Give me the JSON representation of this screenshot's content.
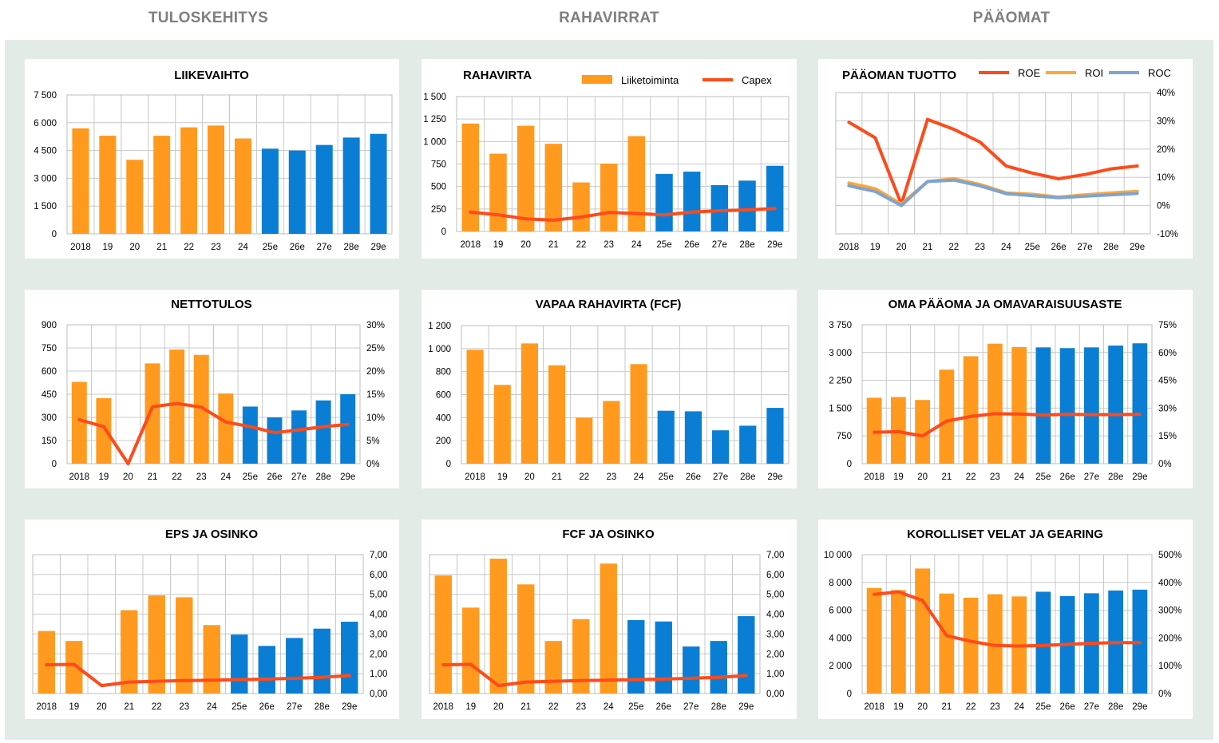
{
  "columns": [
    "TULOSKEHITYS",
    "RAHAVIRRAT",
    "PÄÄOMAT"
  ],
  "colors": {
    "orange": "#ff9a1e",
    "blue": "#0a7ed4",
    "line_red": "#ff4a1a",
    "roi": "#ffa63a",
    "roc": "#7ea4cf",
    "grid": "#c8c8c8",
    "background": "#e3ebe6"
  },
  "chart_data": [
    {
      "id": "liikevaihto",
      "type": "bar",
      "title": "LIIKEVAIHTO",
      "categories": [
        "2018",
        "19",
        "20",
        "21",
        "22",
        "23",
        "24",
        "25e",
        "26e",
        "27e",
        "28e",
        "29e"
      ],
      "series": [
        {
          "kind": "bar",
          "axis": "left",
          "values": [
            5700,
            5300,
            4000,
            5300,
            5750,
            5850,
            5150,
            4600,
            4500,
            4800,
            5200,
            5400
          ]
        }
      ],
      "y_left": {
        "min": 0,
        "max": 7500,
        "ticks": [
          "0",
          "1 500",
          "3 000",
          "4 500",
          "6 000",
          "7 500"
        ]
      },
      "estimate_from_index": 7,
      "grid": true
    },
    {
      "id": "rahavirta",
      "type": "bar",
      "title": "RAHAVIRTA",
      "categories": [
        "2018",
        "19",
        "20",
        "21",
        "22",
        "23",
        "24",
        "25e",
        "26e",
        "27e",
        "28e",
        "29e"
      ],
      "series": [
        {
          "kind": "bar",
          "axis": "left",
          "name": "Liiketoiminta",
          "values": [
            1200,
            865,
            1175,
            975,
            545,
            755,
            1060,
            640,
            665,
            515,
            565,
            730
          ]
        },
        {
          "kind": "line",
          "axis": "left",
          "name": "Capex",
          "values": [
            215,
            185,
            140,
            125,
            160,
            210,
            200,
            185,
            215,
            230,
            240,
            255
          ]
        }
      ],
      "y_left": {
        "min": 0,
        "max": 1500,
        "ticks": [
          "0",
          "250",
          "500",
          "750",
          "1 000",
          "1 250",
          "1 500"
        ]
      },
      "estimate_from_index": 7,
      "grid": true,
      "legend": "top-right"
    },
    {
      "id": "paaoman-tuotto",
      "type": "line",
      "title": "PÄÄOMAN TUOTTO",
      "categories": [
        "2018",
        "19",
        "20",
        "21",
        "22",
        "23",
        "24",
        "25e",
        "26e",
        "27e",
        "28e",
        "29e"
      ],
      "series": [
        {
          "kind": "line",
          "axis": "right",
          "name": "ROE",
          "values": [
            29.5,
            24,
            0.5,
            30.5,
            27,
            22.5,
            14,
            11.5,
            9.5,
            11,
            13,
            14
          ]
        },
        {
          "kind": "line",
          "axis": "right",
          "name": "ROI",
          "values": [
            8,
            6,
            0.5,
            8.5,
            9.5,
            7.5,
            4.5,
            4,
            3,
            3.8,
            4.5,
            5
          ]
        },
        {
          "kind": "line",
          "axis": "right",
          "name": "ROC",
          "values": [
            7,
            5,
            0,
            8.5,
            9,
            7,
            4.2,
            3.5,
            2.8,
            3.3,
            3.8,
            4.3
          ]
        }
      ],
      "y_right": {
        "min": -10,
        "max": 40,
        "ticks": [
          "-10%",
          "0%",
          "10%",
          "20%",
          "30%",
          "40%"
        ]
      },
      "grid": true,
      "legend": "top-right"
    },
    {
      "id": "nettotulos",
      "type": "bar",
      "title": "NETTOTULOS",
      "categories": [
        "2018",
        "19",
        "20",
        "21",
        "22",
        "23",
        "24",
        "25e",
        "26e",
        "27e",
        "28e",
        "29e"
      ],
      "series": [
        {
          "kind": "bar",
          "axis": "left",
          "values": [
            530,
            425,
            0,
            650,
            740,
            705,
            455,
            370,
            300,
            345,
            410,
            450
          ]
        },
        {
          "kind": "line",
          "axis": "right",
          "values": [
            9.5,
            8,
            0,
            12.3,
            13,
            12.2,
            9,
            8,
            6.7,
            7.3,
            8,
            8.5
          ]
        }
      ],
      "y_left": {
        "min": 0,
        "max": 900,
        "ticks": [
          "0",
          "150",
          "300",
          "450",
          "600",
          "750",
          "900"
        ]
      },
      "y_right": {
        "min": 0,
        "max": 30,
        "ticks": [
          "0%",
          "5%",
          "10%",
          "15%",
          "20%",
          "25%",
          "30%"
        ]
      },
      "estimate_from_index": 7,
      "grid": true
    },
    {
      "id": "vapaa-rahavirta",
      "type": "bar",
      "title": "VAPAA RAHAVIRTA (FCF)",
      "categories": [
        "2018",
        "19",
        "20",
        "21",
        "22",
        "23",
        "24",
        "25e",
        "26e",
        "27e",
        "28e",
        "29e"
      ],
      "series": [
        {
          "kind": "bar",
          "axis": "left",
          "values": [
            990,
            685,
            1045,
            855,
            400,
            545,
            865,
            460,
            455,
            290,
            330,
            485
          ]
        }
      ],
      "y_left": {
        "min": 0,
        "max": 1200,
        "ticks": [
          "0",
          "200",
          "400",
          "600",
          "800",
          "1 000",
          "1 200"
        ]
      },
      "estimate_from_index": 7,
      "grid": true
    },
    {
      "id": "oma-paaoma",
      "type": "bar",
      "title": "OMA PÄÄOMA JA OMAVARAISUUSASTE",
      "categories": [
        "2018",
        "19",
        "20",
        "21",
        "22",
        "23",
        "24",
        "25e",
        "26e",
        "27e",
        "28e",
        "29e"
      ],
      "series": [
        {
          "kind": "bar",
          "axis": "left",
          "values": [
            1780,
            1800,
            1720,
            2540,
            2900,
            3240,
            3150,
            3140,
            3120,
            3140,
            3190,
            3250
          ]
        },
        {
          "kind": "line",
          "axis": "right",
          "values": [
            17,
            17.3,
            15,
            23,
            25.5,
            27,
            26.8,
            26.3,
            26.7,
            26.5,
            26.5,
            26.7
          ]
        }
      ],
      "y_left": {
        "min": 0,
        "max": 3750,
        "ticks": [
          "0",
          "750",
          "1 500",
          "2 250",
          "3 000",
          "3 750"
        ]
      },
      "y_right": {
        "min": 0,
        "max": 75,
        "ticks": [
          "0%",
          "15%",
          "30%",
          "45%",
          "60%",
          "75%"
        ]
      },
      "estimate_from_index": 7,
      "grid": true
    },
    {
      "id": "eps-osinko",
      "type": "bar",
      "title": "EPS JA OSINKO",
      "categories": [
        "2018",
        "19",
        "20",
        "21",
        "22",
        "23",
        "24",
        "25e",
        "26e",
        "27e",
        "28e",
        "29e"
      ],
      "series": [
        {
          "kind": "bar",
          "axis": "right",
          "values": [
            3.15,
            2.65,
            0,
            4.2,
            4.95,
            4.85,
            3.45,
            2.97,
            2.4,
            2.8,
            3.27,
            3.62
          ]
        },
        {
          "kind": "line",
          "axis": "right",
          "values": [
            1.45,
            1.47,
            0.4,
            0.58,
            0.62,
            0.65,
            0.67,
            0.7,
            0.73,
            0.77,
            0.82,
            0.9
          ]
        }
      ],
      "y_right": {
        "min": 0,
        "max": 7,
        "ticks": [
          "0,00",
          "1,00",
          "2,00",
          "3,00",
          "4,00",
          "5,00",
          "6,00",
          "7,00"
        ]
      },
      "estimate_from_index": 7,
      "grid": true
    },
    {
      "id": "fcf-osinko",
      "type": "bar",
      "title": "FCF JA OSINKO",
      "categories": [
        "2018",
        "19",
        "20",
        "21",
        "22",
        "23",
        "24",
        "25e",
        "26e",
        "27e",
        "28e",
        "29e"
      ],
      "series": [
        {
          "kind": "bar",
          "axis": "right",
          "values": [
            5.95,
            4.33,
            6.8,
            5.5,
            2.65,
            3.75,
            6.55,
            3.7,
            3.63,
            2.37,
            2.65,
            3.9
          ]
        },
        {
          "kind": "line",
          "axis": "right",
          "values": [
            1.45,
            1.47,
            0.4,
            0.58,
            0.62,
            0.65,
            0.67,
            0.7,
            0.73,
            0.77,
            0.82,
            0.9
          ]
        }
      ],
      "y_right": {
        "min": 0,
        "max": 7,
        "ticks": [
          "0,00",
          "1,00",
          "2,00",
          "3,00",
          "4,00",
          "5,00",
          "6,00",
          "7,00"
        ]
      },
      "estimate_from_index": 7,
      "grid": true
    },
    {
      "id": "korolliset-velat",
      "type": "bar",
      "title": "KOROLLISET VELAT JA GEARING",
      "categories": [
        "2018",
        "19",
        "20",
        "21",
        "22",
        "23",
        "24",
        "25e",
        "26e",
        "27e",
        "28e",
        "29e"
      ],
      "series": [
        {
          "kind": "bar",
          "axis": "left",
          "values": [
            7600,
            7450,
            9000,
            7200,
            6900,
            7150,
            6990,
            7330,
            7020,
            7220,
            7420,
            7480
          ]
        },
        {
          "kind": "line",
          "axis": "right",
          "values": [
            357,
            366,
            335,
            208,
            188,
            173,
            171,
            173,
            177,
            181,
            183,
            183
          ]
        }
      ],
      "y_left": {
        "min": 0,
        "max": 10000,
        "ticks": [
          "0",
          "2 000",
          "4 000",
          "6 000",
          "8 000",
          "10 000"
        ]
      },
      "y_right": {
        "min": 0,
        "max": 500,
        "ticks": [
          "0%",
          "100%",
          "200%",
          "300%",
          "400%",
          "500%"
        ]
      },
      "estimate_from_index": 7,
      "grid": true
    }
  ]
}
